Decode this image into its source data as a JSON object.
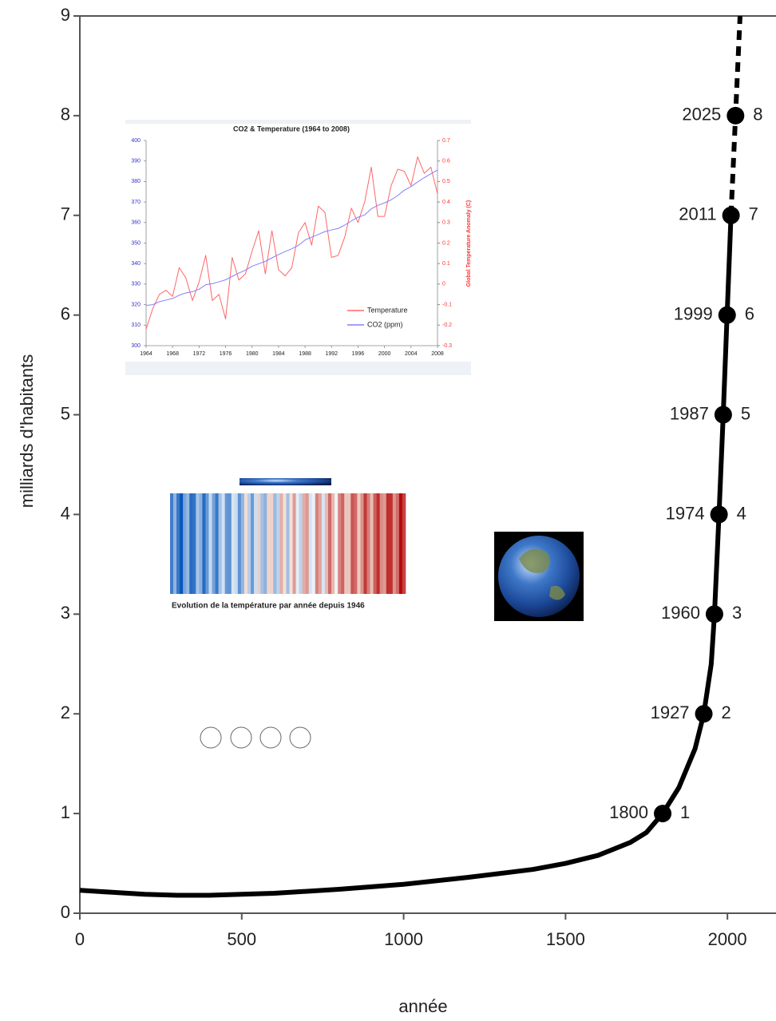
{
  "chart_data": [
    {
      "type": "line",
      "xlabel": "année",
      "ylabel": "milliards d'habitants",
      "xlim": [
        0,
        2150
      ],
      "ylim": [
        0,
        9
      ],
      "xticks": [
        0,
        500,
        1000,
        1500,
        2000
      ],
      "yticks": [
        0,
        1,
        2,
        3,
        4,
        5,
        6,
        7,
        8,
        9
      ],
      "series": [
        {
          "color": "#000000",
          "style": "solid",
          "x": [
            0,
            100,
            200,
            300,
            400,
            500,
            600,
            800,
            1000,
            1200,
            1400,
            1500,
            1600,
            1700,
            1750,
            1800,
            1850,
            1900,
            1927,
            1950,
            1960,
            1974,
            1987,
            1999,
            2011
          ],
          "values": [
            0.23,
            0.21,
            0.19,
            0.18,
            0.18,
            0.19,
            0.2,
            0.24,
            0.29,
            0.36,
            0.44,
            0.5,
            0.58,
            0.71,
            0.81,
            1,
            1.26,
            1.65,
            2,
            2.5,
            3,
            4,
            5,
            6,
            7
          ]
        },
        {
          "color": "#000000",
          "style": "dashed",
          "x": [
            2011,
            2025,
            2039
          ],
          "values": [
            7,
            8,
            9
          ]
        }
      ],
      "milestones": {
        "x": [
          1800,
          1927,
          1960,
          1974,
          1987,
          1999,
          2011,
          2025
        ],
        "values": [
          1,
          2,
          3,
          4,
          5,
          6,
          7,
          8
        ]
      }
    },
    {
      "type": "line",
      "title": "CO2 & Temperature (1964 to 2008)",
      "y2label": "Global Temperature Anomaly (C)",
      "xlim": [
        1964,
        2008
      ],
      "xticks": [
        1964,
        1968,
        1972,
        1976,
        1980,
        1984,
        1988,
        1992,
        1996,
        2000,
        2004,
        2008
      ],
      "ylim": [
        300,
        400
      ],
      "yticks": [
        300,
        310,
        320,
        330,
        340,
        350,
        360,
        370,
        380,
        390,
        400
      ],
      "y2lim": [
        -0.3,
        0.7
      ],
      "y2ticks": [
        -0.3,
        -0.2,
        -0.1,
        0,
        0.1,
        0.2,
        0.3,
        0.4,
        0.5,
        0.6,
        0.7
      ],
      "x": [
        1964,
        1965,
        1966,
        1967,
        1968,
        1969,
        1970,
        1971,
        1972,
        1973,
        1974,
        1975,
        1976,
        1977,
        1978,
        1979,
        1980,
        1981,
        1982,
        1983,
        1984,
        1985,
        1986,
        1987,
        1988,
        1989,
        1990,
        1991,
        1992,
        1993,
        1994,
        1995,
        1996,
        1997,
        1998,
        1999,
        2000,
        2001,
        2002,
        2003,
        2004,
        2005,
        2006,
        2007,
        2008
      ],
      "series": [
        {
          "name": "Temperature",
          "color": "#ff6666",
          "axis": "y2",
          "values": [
            -0.22,
            -0.12,
            -0.05,
            -0.03,
            -0.06,
            0.08,
            0.03,
            -0.08,
            0.01,
            0.14,
            -0.08,
            -0.05,
            -0.17,
            0.13,
            0.02,
            0.05,
            0.16,
            0.26,
            0.05,
            0.26,
            0.07,
            0.04,
            0.08,
            0.25,
            0.3,
            0.19,
            0.38,
            0.35,
            0.13,
            0.14,
            0.23,
            0.37,
            0.3,
            0.4,
            0.57,
            0.33,
            0.33,
            0.48,
            0.56,
            0.55,
            0.48,
            0.62,
            0.54,
            0.57,
            0.44
          ]
        },
        {
          "name": "CO2 (ppm)",
          "color": "#8080ff",
          "values": [
            319.6,
            320,
            321.4,
            322.2,
            323,
            324.6,
            325.7,
            326.3,
            327.5,
            329.7,
            330.2,
            331.1,
            332.1,
            333.8,
            335.4,
            336.8,
            338.7,
            339.9,
            341.1,
            342.8,
            344.4,
            345.9,
            347.2,
            348.9,
            351.5,
            352.9,
            354.2,
            355.6,
            356.4,
            357.1,
            358.8,
            360.8,
            362.6,
            363.7,
            366.7,
            368.4,
            369.6,
            371.1,
            373.2,
            375.8,
            377.5,
            379.8,
            381.9,
            383.8,
            385.6
          ]
        }
      ]
    }
  ],
  "overlays": {
    "stripes_caption": "Evolution de la température par année depuis 1946"
  }
}
